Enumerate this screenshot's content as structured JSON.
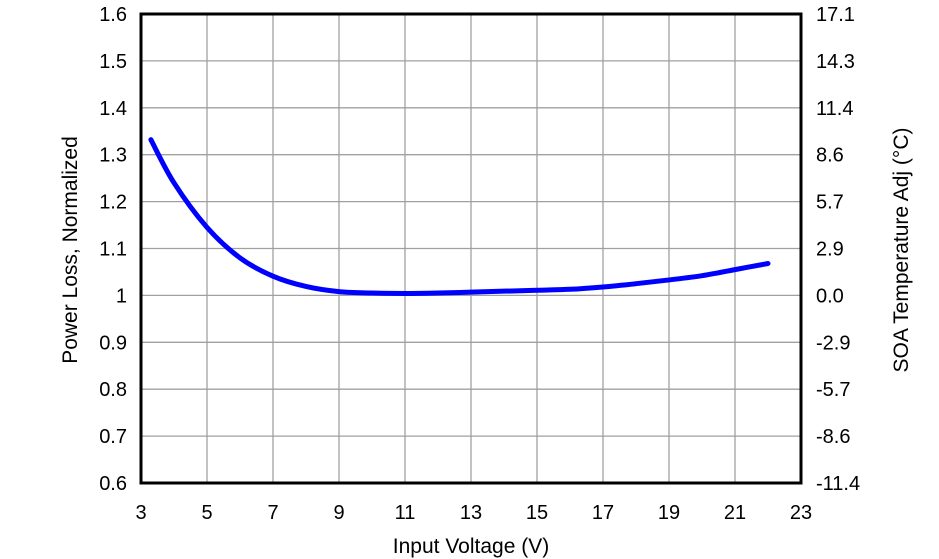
{
  "chart_data": {
    "type": "line",
    "title": "",
    "xlabel": "Input Voltage (V)",
    "ylabel": "Power Loss, Normalized",
    "y2label": "SOA Temperature Adj (°C)",
    "xlim": [
      3,
      23
    ],
    "ylim": [
      0.6,
      1.6
    ],
    "grid": true,
    "legend": "none",
    "x_ticks": [
      "3",
      "5",
      "7",
      "9",
      "11",
      "13",
      "15",
      "17",
      "19",
      "21",
      "23"
    ],
    "y_ticks": [
      "0.6",
      "0.7",
      "0.8",
      "0.9",
      "1",
      "1.1",
      "1.2",
      "1.3",
      "1.4",
      "1.5",
      "1.6"
    ],
    "y2_ticks": [
      "-11.4",
      "-8.6",
      "-5.7",
      "-2.9",
      "0.0",
      "2.9",
      "5.7",
      "8.6",
      "11.4",
      "14.3",
      "17.1"
    ],
    "series": [
      {
        "name": "Power Loss",
        "color": "#0000ff",
        "x": [
          3.3,
          4,
          5,
          6,
          7,
          8,
          9,
          10,
          11,
          12,
          13,
          14,
          15,
          16,
          17,
          18,
          19,
          20,
          21,
          22
        ],
        "values": [
          1.332,
          1.24,
          1.145,
          1.08,
          1.041,
          1.019,
          1.008,
          1.005,
          1.004,
          1.005,
          1.007,
          1.009,
          1.011,
          1.013,
          1.018,
          1.025,
          1.033,
          1.042,
          1.055,
          1.068
        ]
      }
    ]
  },
  "colors": {
    "line": "#0000ff",
    "grid": "#a0a0a0",
    "frame": "#000000"
  }
}
